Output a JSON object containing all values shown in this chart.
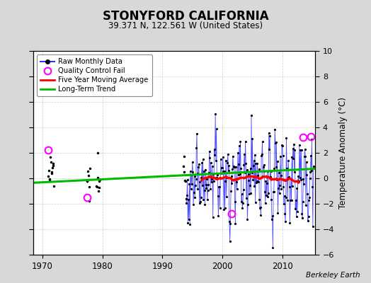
{
  "title": "STONYFORD CALIFORNIA",
  "subtitle": "39.371 N, 122.561 W (United States)",
  "ylabel": "Temperature Anomaly (°C)",
  "credit": "Berkeley Earth",
  "xlim": [
    1968.5,
    2015.5
  ],
  "ylim": [
    -6,
    10
  ],
  "yticks": [
    -6,
    -4,
    -2,
    0,
    2,
    4,
    6,
    8,
    10
  ],
  "xticks": [
    1970,
    1980,
    1990,
    2000,
    2010
  ],
  "bg_color": "#d8d8d8",
  "plot_bg_color": "#ffffff",
  "raw_color": "#3333ff",
  "ma_color": "#ff0000",
  "trend_color": "#00bb00",
  "qc_color": "#ff00ff",
  "early_isolated": {
    "x": [
      1971.0,
      1977.5,
      1979.8,
      1993.5
    ],
    "y": [
      2.2,
      -1.5,
      -1.7,
      2.5
    ]
  },
  "qc_fail": {
    "x": [
      1971.0,
      1977.5,
      2001.5,
      2013.5,
      2014.8
    ],
    "y": [
      2.2,
      -1.5,
      -2.8,
      3.2,
      3.3
    ]
  },
  "trend": {
    "x": [
      1968.5,
      2015.5
    ],
    "y": [
      -0.35,
      0.75
    ]
  },
  "grid_color": "#cccccc",
  "seed": 12345,
  "dense_start_year": 1994,
  "dense_end_year": 2015,
  "sparse_clusters": [
    {
      "year": 1971,
      "months": [
        1,
        2,
        3,
        4,
        5,
        6,
        7,
        8,
        9,
        10,
        11,
        12
      ],
      "mean": 0.3,
      "std": 0.7
    },
    {
      "year": 1977,
      "months": [
        6,
        7,
        8,
        9,
        10,
        11,
        12
      ],
      "mean": -0.4,
      "std": 0.7
    },
    {
      "year": 1979,
      "months": [
        1,
        2,
        3,
        4,
        5,
        6,
        7,
        8
      ],
      "mean": -0.3,
      "std": 0.7
    },
    {
      "year": 1993,
      "months": [
        7,
        8,
        9,
        10,
        11,
        12
      ],
      "mean": 0.5,
      "std": 0.9
    }
  ]
}
